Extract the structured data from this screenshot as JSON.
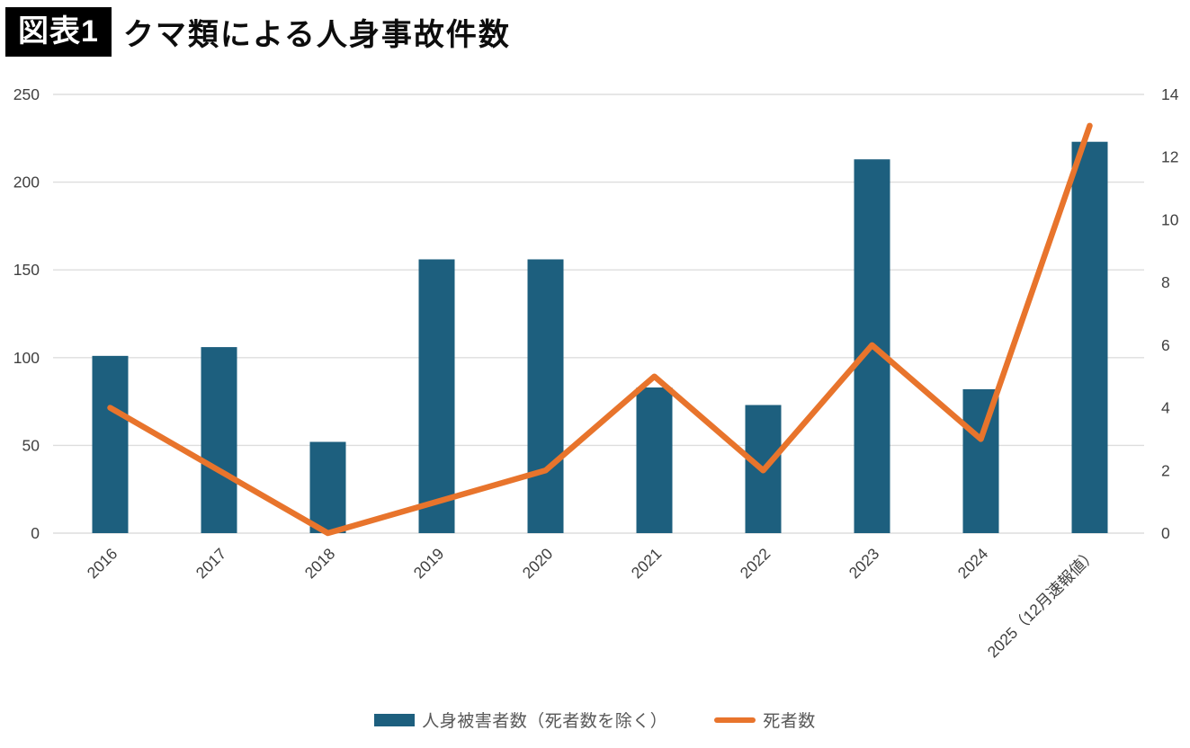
{
  "figure": {
    "badge_label": "図表1",
    "title": "クマ類による人身事故件数"
  },
  "chart_data": {
    "type": "bar",
    "subtype": "combo-bar-line-dual-axis",
    "title": "クマ類による人身事故件数",
    "categories": [
      "2016",
      "2017",
      "2018",
      "2019",
      "2020",
      "2021",
      "2022",
      "2023",
      "2024",
      "2025（12月速報値）"
    ],
    "series": [
      {
        "name": "人身被害者数（死者数を除く）",
        "type": "bar",
        "axis": "left",
        "color": "#1d5f7e",
        "values": [
          101,
          106,
          52,
          156,
          156,
          83,
          73,
          213,
          82,
          223
        ]
      },
      {
        "name": "死者数",
        "type": "line",
        "axis": "right",
        "color": "#e8742c",
        "values": [
          4,
          2,
          0,
          1,
          2,
          5,
          2,
          6,
          3,
          13
        ]
      }
    ],
    "left_axis": {
      "min": 0,
      "max": 250,
      "ticks": [
        0,
        50,
        100,
        150,
        200,
        250
      ]
    },
    "right_axis": {
      "min": 0,
      "max": 14,
      "ticks": [
        0,
        2,
        4,
        6,
        8,
        10,
        12,
        14
      ]
    },
    "grid": true,
    "grid_color": "#dedede",
    "axis_text_color": "#404040",
    "legend_position": "bottom",
    "x_label_rotation_deg": -45
  },
  "legend": {
    "bar_label": "人身被害者数（死者数を除く）",
    "line_label": "死者数"
  }
}
